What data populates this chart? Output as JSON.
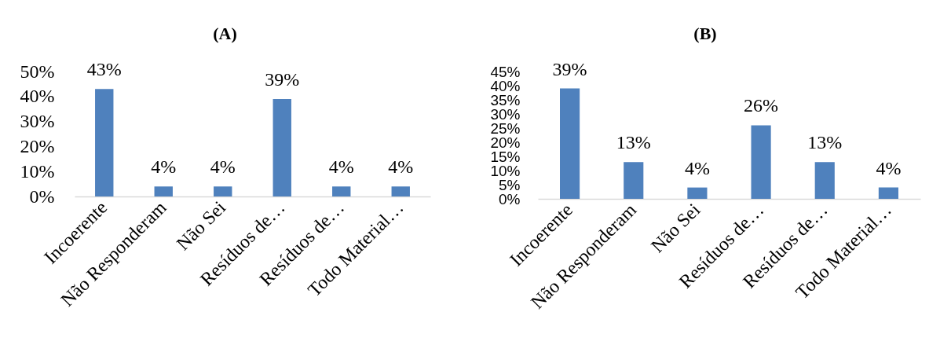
{
  "chart_data": [
    {
      "type": "bar",
      "title": "(A)",
      "categories": [
        "Incoerente",
        "Não Responderam",
        "Não Sei",
        "Resíduos de…",
        "Resíduos de…",
        "Todo Material…"
      ],
      "values": [
        43,
        4,
        4,
        39,
        4,
        4
      ],
      "value_labels": [
        "43%",
        "4%",
        "4%",
        "39%",
        "4%",
        "4%"
      ],
      "color": "#4f81bd",
      "ylim": [
        0,
        50
      ],
      "yticks": [
        {
          "value": 0,
          "label": "0%"
        },
        {
          "value": 10,
          "label": "10%"
        },
        {
          "value": 20,
          "label": "20%"
        },
        {
          "value": 30,
          "label": "30%"
        },
        {
          "value": 40,
          "label": "40%"
        },
        {
          "value": 50,
          "label": "50%"
        }
      ]
    },
    {
      "type": "bar",
      "title": "(B)",
      "categories": [
        "Incoerente",
        "Não Responderam",
        "Não Sei",
        "Resíduos de…",
        "Resíduos de…",
        "Todo Material…"
      ],
      "values": [
        39,
        13,
        4,
        26,
        13,
        4
      ],
      "value_labels": [
        "39%",
        "13%",
        "4%",
        "26%",
        "13%",
        "4%"
      ],
      "color": "#4f81bd",
      "ylim": [
        0,
        45
      ],
      "yticks": [
        {
          "value": 0,
          "label": "0%"
        },
        {
          "value": 5,
          "label": "5%"
        },
        {
          "value": 10,
          "label": "10%"
        },
        {
          "value": 15,
          "label": "15%"
        },
        {
          "value": 20,
          "label": "20%"
        },
        {
          "value": 25,
          "label": "25%"
        },
        {
          "value": 30,
          "label": "30%"
        },
        {
          "value": 35,
          "label": "35%"
        },
        {
          "value": 40,
          "label": "40%"
        },
        {
          "value": 45,
          "label": "45%"
        }
      ]
    }
  ]
}
